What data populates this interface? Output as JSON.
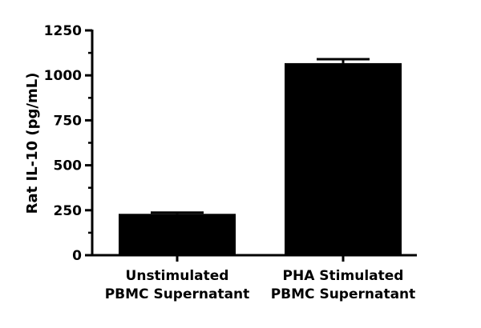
{
  "chart_data": {
    "type": "bar",
    "title": "",
    "xlabel": "",
    "ylabel": "Rat IL-10 (pg/mL)",
    "ylim": [
      0,
      1250
    ],
    "yticks": [
      0,
      250,
      500,
      750,
      1000,
      1250
    ],
    "ytick_labels": [
      "0",
      "250",
      "500",
      "750",
      "1000",
      "1250"
    ],
    "minor_ticks_between_majors": 1,
    "categories": [
      [
        "Unstimulated",
        "PBMC Supernatant"
      ],
      [
        "PHA Stimulated",
        "PBMC Supernatant"
      ]
    ],
    "values": [
      230,
      1068
    ],
    "errors": [
      7,
      22
    ],
    "grid": false,
    "legend": "none",
    "bar_color": "#000000",
    "axis_color": "#000000"
  }
}
